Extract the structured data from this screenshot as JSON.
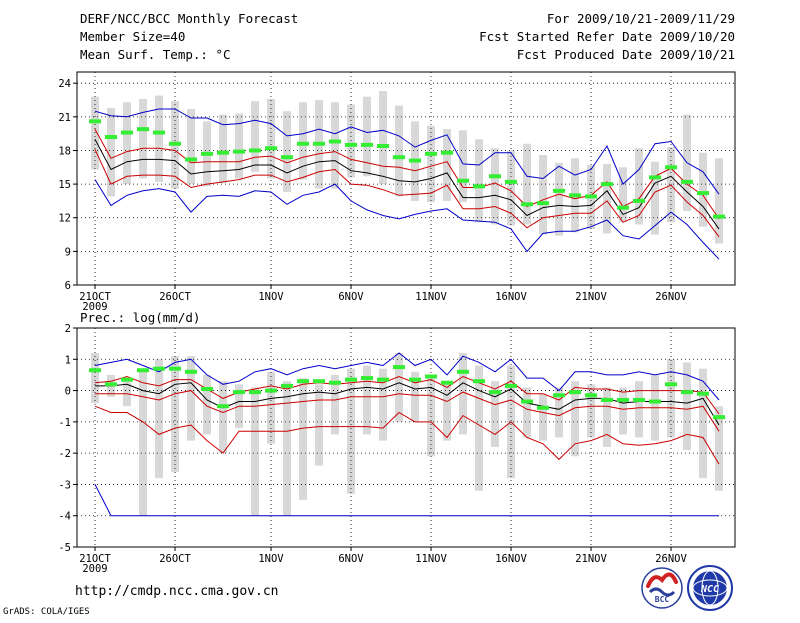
{
  "header": {
    "title": "DERF/NCC/BCC Monthly Forecast",
    "member": "Member Size=40",
    "variable": "Mean Surf. Temp.: °C",
    "period": "For 2009/10/21-2009/11/29",
    "refer": "Fcst Started Refer Date 2009/10/20",
    "produced": "Fcst Produced Date 2009/10/21"
  },
  "footer": {
    "url": "http://cmdp.ncc.cma.gov.cn",
    "grads": "GrADS: COLA/IGES",
    "bcc_logo_text": "BCC",
    "ncc_logo_text": "NCC"
  },
  "colors": {
    "box": "#d8d8d8",
    "mean": "#000000",
    "spread": "#cc0000",
    "extreme": "#0000cc",
    "ensemble": "#33ee33",
    "grid": "#000000"
  },
  "chart_data": [
    {
      "type": "line",
      "title": "Mean Surf. Temp.: °C",
      "xlabel": "",
      "ylabel": "°C",
      "ylim": [
        6,
        25
      ],
      "yticks": [
        6,
        9,
        12,
        15,
        18,
        21,
        24
      ],
      "x_tick_labels": [
        "21OCT",
        "26OCT",
        "1NOV",
        "6NOV",
        "11NOV",
        "16NOV",
        "21NOV",
        "26NOV"
      ],
      "x_tick_index": [
        0,
        5,
        11,
        16,
        21,
        26,
        31,
        36
      ],
      "year_label": "2009",
      "days": 40,
      "grid": "dotted",
      "series": [
        {
          "name": "box_top",
          "values": [
            22.8,
            21.8,
            22.3,
            22.6,
            22.9,
            22.4,
            21.7,
            20.6,
            21.2,
            21.3,
            22.4,
            22.6,
            21.5,
            22.3,
            22.5,
            22.3,
            22.1,
            22.8,
            23.3,
            22.0,
            20.6,
            20.2,
            19.9,
            19.8,
            19.0,
            18.2,
            18.0,
            18.6,
            17.6,
            16.9,
            17.3,
            16.7,
            16.8,
            16.5,
            18.2,
            17.0,
            18.3,
            21.2,
            17.8,
            17.3
          ]
        },
        {
          "name": "box_bottom",
          "values": [
            16.3,
            13.9,
            15.0,
            15.5,
            15.2,
            14.6,
            15.0,
            14.8,
            15.1,
            15.5,
            16.1,
            15.5,
            14.3,
            15.4,
            14.6,
            14.6,
            15.6,
            15.7,
            15.0,
            13.9,
            13.5,
            13.4,
            13.5,
            13.4,
            11.6,
            11.4,
            11.3,
            11.4,
            10.5,
            10.4,
            10.7,
            11.0,
            10.6,
            11.6,
            11.4,
            10.5,
            11.6,
            12.6,
            11.2,
            9.7
          ]
        },
        {
          "name": "ensemble_member",
          "values": [
            20.6,
            19.2,
            19.6,
            19.9,
            19.6,
            18.6,
            17.2,
            17.7,
            17.8,
            17.9,
            18.0,
            18.2,
            17.4,
            18.6,
            18.6,
            18.8,
            18.5,
            18.5,
            18.4,
            17.4,
            17.1,
            17.7,
            17.8,
            15.3,
            14.8,
            15.7,
            15.2,
            13.2,
            13.3,
            14.4,
            14.0,
            13.9,
            15.0,
            12.9,
            13.5,
            15.6,
            16.5,
            15.2,
            14.2,
            12.1
          ]
        },
        {
          "name": "max",
          "values": [
            21.5,
            21.1,
            21.0,
            21.4,
            21.7,
            21.7,
            20.9,
            20.9,
            20.3,
            20.4,
            20.7,
            20.4,
            19.3,
            19.5,
            19.9,
            19.5,
            20.1,
            19.6,
            19.8,
            19.3,
            18.3,
            18.9,
            19.4,
            16.8,
            16.7,
            17.8,
            17.8,
            15.7,
            15.5,
            16.6,
            15.8,
            16.3,
            18.4,
            15.0,
            16.3,
            18.6,
            18.8,
            16.9,
            16.1,
            14.1
          ]
        },
        {
          "name": "mean_plus_sd",
          "values": [
            19.9,
            17.3,
            17.9,
            18.2,
            18.2,
            18.0,
            16.9,
            17.0,
            17.0,
            17.0,
            17.4,
            17.5,
            16.9,
            17.4,
            17.7,
            17.9,
            17.2,
            16.9,
            16.6,
            16.5,
            16.2,
            16.6,
            17.0,
            14.7,
            14.7,
            15.1,
            14.4,
            13.0,
            13.6,
            14.1,
            13.7,
            14.0,
            15.2,
            13.0,
            13.7,
            15.7,
            16.4,
            15.0,
            14.0,
            11.9
          ]
        },
        {
          "name": "mean",
          "values": [
            19.0,
            16.3,
            17.0,
            17.2,
            17.2,
            17.1,
            15.9,
            16.1,
            16.2,
            16.3,
            16.7,
            16.7,
            16.0,
            16.6,
            17.0,
            17.1,
            16.2,
            16.0,
            15.7,
            15.3,
            15.2,
            15.5,
            16.0,
            13.8,
            13.8,
            14.0,
            13.6,
            12.2,
            12.9,
            13.1,
            13.0,
            13.1,
            14.4,
            12.3,
            12.9,
            15.1,
            15.7,
            14.3,
            13.0,
            11.0
          ]
        },
        {
          "name": "mean_minus_sd",
          "values": [
            18.1,
            15.0,
            15.7,
            15.8,
            15.8,
            15.7,
            14.7,
            15.0,
            15.2,
            15.4,
            15.8,
            15.8,
            15.2,
            15.6,
            16.1,
            16.3,
            15.0,
            14.9,
            14.5,
            14.0,
            14.1,
            14.2,
            14.9,
            12.8,
            12.8,
            13.0,
            12.4,
            11.1,
            12.0,
            12.2,
            12.4,
            12.4,
            13.5,
            11.6,
            12.2,
            14.3,
            14.9,
            13.4,
            12.2,
            10.3
          ]
        },
        {
          "name": "min",
          "values": [
            15.4,
            13.1,
            14.0,
            14.4,
            14.6,
            14.3,
            12.5,
            13.9,
            14.0,
            13.9,
            14.4,
            14.3,
            13.2,
            14.0,
            14.3,
            15.0,
            13.5,
            12.7,
            12.2,
            11.9,
            12.3,
            12.6,
            12.8,
            11.8,
            11.7,
            11.6,
            11.0,
            9.0,
            10.6,
            10.8,
            10.8,
            11.2,
            11.8,
            10.4,
            10.1,
            11.3,
            12.5,
            11.4,
            9.8,
            8.3
          ]
        }
      ]
    },
    {
      "type": "line",
      "title": "Prec.: log(mm/d)",
      "xlabel": "",
      "ylabel": "log(mm/d)",
      "ylim": [
        -5,
        2
      ],
      "yticks": [
        -5,
        -4,
        -3,
        -2,
        -1,
        0,
        1,
        2
      ],
      "x_tick_labels": [
        "21OCT",
        "26OCT",
        "1NOV",
        "6NOV",
        "11NOV",
        "16NOV",
        "21NOV",
        "26NOV"
      ],
      "x_tick_index": [
        0,
        5,
        11,
        16,
        21,
        26,
        31,
        36
      ],
      "year_label": "2009",
      "days": 40,
      "grid": "dotted",
      "series": [
        {
          "name": "box_top",
          "values": [
            1.2,
            0.5,
            0.4,
            0.6,
            1.0,
            1.1,
            1.1,
            0.5,
            0.3,
            0.2,
            0.1,
            0.6,
            0.3,
            0.4,
            0.2,
            0.5,
            0.7,
            0.8,
            0.7,
            1.2,
            0.6,
            0.5,
            0.2,
            1.2,
            0.8,
            0.3,
            0.8,
            0.1,
            -0.1,
            0.1,
            0.3,
            0.2,
            0.1,
            0.1,
            0.3,
            0.5,
            1.0,
            0.9,
            0.7,
            -0.5
          ]
        },
        {
          "name": "box_bottom",
          "values": [
            -0.4,
            -0.2,
            -0.5,
            -4.0,
            -2.8,
            -2.6,
            -1.6,
            -1.4,
            -2.0,
            -1.2,
            -4.0,
            -1.7,
            -4.0,
            -3.5,
            -2.4,
            -1.4,
            -3.3,
            -1.4,
            -1.6,
            -1.0,
            -1.0,
            -2.1,
            -1.6,
            -1.4,
            -3.2,
            -1.8,
            -2.8,
            -1.5,
            -1.6,
            -1.5,
            -2.1,
            -1.5,
            -1.8,
            -1.4,
            -1.5,
            -1.6,
            -1.5,
            -1.9,
            -2.8,
            -3.2
          ]
        },
        {
          "name": "ensemble_member",
          "values": [
            0.65,
            0.2,
            0.35,
            0.65,
            0.7,
            0.7,
            0.6,
            0.05,
            -0.5,
            -0.05,
            -0.05,
            0.0,
            0.15,
            0.3,
            0.3,
            0.25,
            0.35,
            0.4,
            0.35,
            0.75,
            0.35,
            0.45,
            0.25,
            0.6,
            0.3,
            -0.05,
            0.15,
            -0.35,
            -0.55,
            -0.15,
            -0.05,
            -0.15,
            -0.3,
            -0.3,
            -0.3,
            -0.35,
            0.2,
            -0.05,
            -0.1,
            -0.85
          ]
        },
        {
          "name": "max",
          "values": [
            0.8,
            0.9,
            1.0,
            0.8,
            0.6,
            0.9,
            1.0,
            0.5,
            0.2,
            0.3,
            0.6,
            0.7,
            0.5,
            0.7,
            0.8,
            0.7,
            0.8,
            0.9,
            0.8,
            1.2,
            0.8,
            1.0,
            0.5,
            1.1,
            0.9,
            0.6,
            1.0,
            0.4,
            0.4,
            0.0,
            0.6,
            0.6,
            0.5,
            0.5,
            0.6,
            0.5,
            0.6,
            0.5,
            0.3,
            -0.3
          ]
        },
        {
          "name": "mean_plus_sd",
          "values": [
            0.25,
            0.3,
            0.45,
            0.25,
            0.15,
            0.35,
            0.35,
            0.05,
            -0.25,
            -0.05,
            0.05,
            0.15,
            0.05,
            0.2,
            0.25,
            0.2,
            0.25,
            0.3,
            0.25,
            0.45,
            0.25,
            0.35,
            0.1,
            0.45,
            0.25,
            0.05,
            0.3,
            -0.1,
            -0.1,
            -0.3,
            0.1,
            0.05,
            0.05,
            -0.05,
            0.0,
            0.0,
            0.0,
            0.0,
            -0.05,
            -0.75
          ]
        },
        {
          "name": "mean",
          "values": [
            0.15,
            0.15,
            0.2,
            0.0,
            -0.1,
            0.2,
            0.25,
            -0.3,
            -0.55,
            -0.35,
            -0.35,
            -0.25,
            -0.2,
            -0.1,
            -0.05,
            -0.1,
            0.05,
            0.1,
            0.05,
            0.25,
            0.05,
            0.1,
            -0.15,
            0.25,
            0.0,
            -0.2,
            0.05,
            -0.4,
            -0.5,
            -0.6,
            -0.3,
            -0.25,
            -0.25,
            -0.4,
            -0.35,
            -0.35,
            -0.35,
            -0.4,
            -0.25,
            -1.1
          ]
        },
        {
          "name": "mean_minus_sd",
          "values": [
            -0.1,
            -0.1,
            -0.1,
            -0.2,
            -0.3,
            -0.1,
            0.0,
            -0.5,
            -0.7,
            -0.5,
            -0.5,
            -0.45,
            -0.4,
            -0.35,
            -0.3,
            -0.3,
            -0.2,
            -0.2,
            -0.2,
            -0.1,
            -0.15,
            -0.15,
            -0.35,
            -0.05,
            -0.25,
            -0.45,
            -0.3,
            -0.6,
            -0.7,
            -0.8,
            -0.55,
            -0.5,
            -0.5,
            -0.6,
            -0.55,
            -0.55,
            -0.55,
            -0.6,
            -0.5,
            -1.3
          ]
        },
        {
          "name": "mean_minus_2sd",
          "values": [
            -0.5,
            -0.7,
            -0.7,
            -1.0,
            -1.4,
            -1.2,
            -1.1,
            -1.6,
            -2.0,
            -1.3,
            -1.3,
            -1.3,
            -1.3,
            -1.2,
            -1.15,
            -1.15,
            -1.15,
            -1.15,
            -1.2,
            -0.7,
            -1.0,
            -1.0,
            -1.5,
            -0.8,
            -1.1,
            -1.4,
            -1.0,
            -1.5,
            -1.7,
            -2.2,
            -1.7,
            -1.6,
            -1.4,
            -1.7,
            -1.75,
            -1.7,
            -1.6,
            -1.4,
            -1.5,
            -2.35
          ]
        },
        {
          "name": "min",
          "values": [
            -3.0,
            -4.0,
            -4.0,
            -4.0,
            -4.0,
            -4.0,
            -4.0,
            -4.0,
            -4.0,
            -4.0,
            -4.0,
            -4.0,
            -4.0,
            -4.0,
            -4.0,
            -4.0,
            -4.0,
            -4.0,
            -4.0,
            -4.0,
            -4.0,
            -4.0,
            -4.0,
            -4.0,
            -4.0,
            -4.0,
            -4.0,
            -4.0,
            -4.0,
            -4.0,
            -4.0,
            -4.0,
            -4.0,
            -4.0,
            -4.0,
            -4.0,
            -4.0,
            -4.0,
            -4.0,
            -4.0
          ]
        }
      ]
    }
  ]
}
